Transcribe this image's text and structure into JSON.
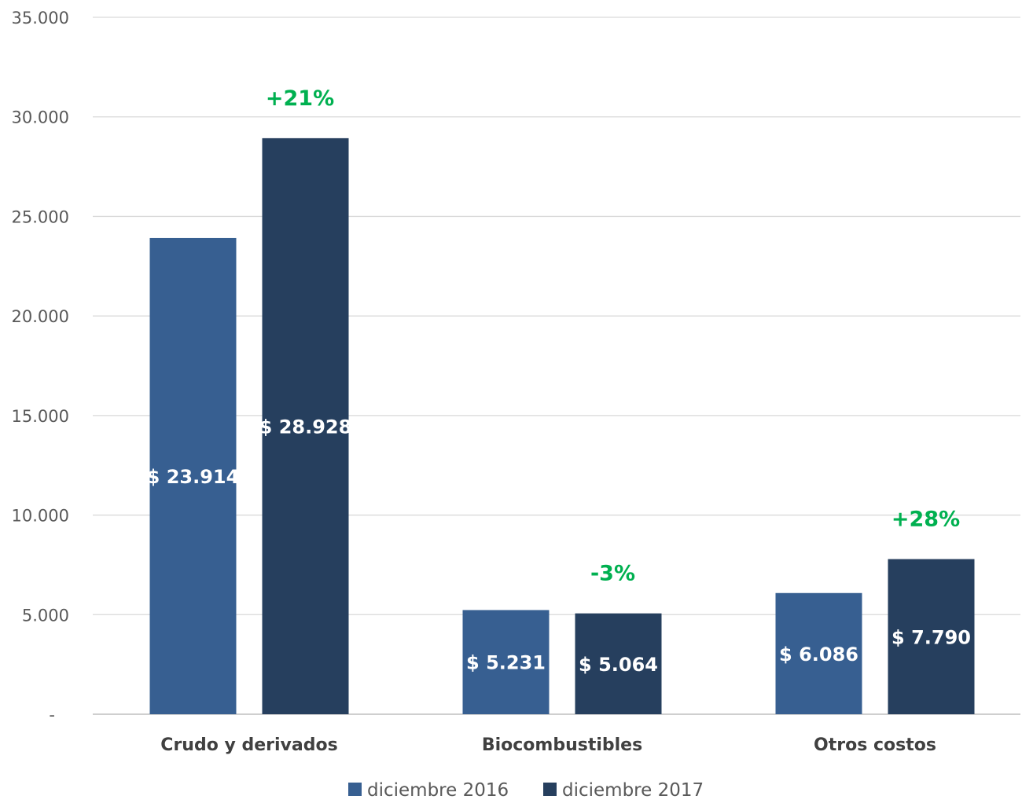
{
  "chart_data": {
    "type": "bar",
    "categories": [
      "Crudo y derivados",
      "Biocombustibles",
      "Otros costos"
    ],
    "series": [
      {
        "name": "diciembre 2016",
        "color": "#375f91",
        "values": [
          23914,
          5231,
          6086
        ],
        "labels": [
          "$ 23.914",
          "$ 5.231",
          "$ 6.086"
        ]
      },
      {
        "name": "diciembre 2017",
        "color": "#263f5e",
        "values": [
          28928,
          5064,
          7790
        ],
        "labels": [
          "$ 28.928",
          "$ 5.064",
          "$ 7.790"
        ]
      }
    ],
    "annotations": [
      "+21%",
      "-3%",
      "+28%"
    ],
    "annotation_color": "#00b050",
    "y_ticks": [
      {
        "value": 0,
        "label": "-"
      },
      {
        "value": 5000,
        "label": "5.000"
      },
      {
        "value": 10000,
        "label": "10.000"
      },
      {
        "value": 15000,
        "label": "15.000"
      },
      {
        "value": 20000,
        "label": "20.000"
      },
      {
        "value": 25000,
        "label": "25.000"
      },
      {
        "value": 30000,
        "label": "30.000"
      },
      {
        "value": 35000,
        "label": "35.000"
      }
    ],
    "ylim": [
      0,
      35000
    ],
    "grid": true,
    "legend_position": "bottom",
    "title": "",
    "xlabel": "",
    "ylabel": ""
  }
}
